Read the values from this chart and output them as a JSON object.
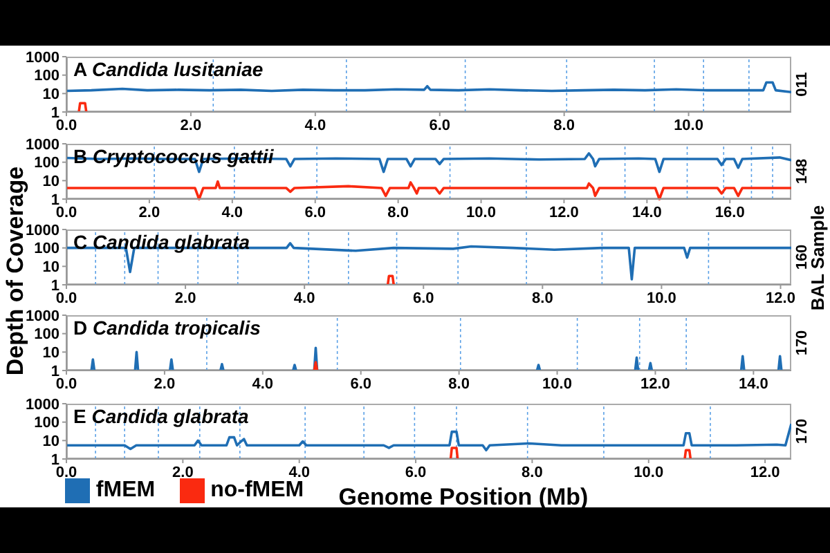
{
  "chart_data": [
    {
      "type": "line",
      "title": "Candida lusitaniae",
      "annotations": [
        "A",
        "011"
      ],
      "xlim": [
        0,
        11.65
      ],
      "xticks": [
        {
          "value": 0,
          "label": "0.0"
        },
        {
          "value": 2,
          "label": "2.0"
        },
        {
          "value": 4,
          "label": "4.0"
        },
        {
          "value": 6,
          "label": "6.0"
        },
        {
          "value": 8,
          "label": "8.0"
        },
        {
          "value": 10,
          "label": "10.0"
        }
      ],
      "ylim": [
        1,
        1000
      ],
      "yticks": [
        1,
        10,
        100,
        1000
      ],
      "log": "y",
      "tick_labels": "xy",
      "ref_lines": [
        {
          "axis": "x",
          "value": 2.36,
          "color": "#5aa0e6",
          "line_style": "dotted"
        },
        {
          "axis": "x",
          "value": 4.5,
          "color": "#5aa0e6",
          "line_style": "dotted"
        },
        {
          "axis": "x",
          "value": 6.41,
          "color": "#5aa0e6",
          "line_style": "dotted"
        },
        {
          "axis": "x",
          "value": 8.04,
          "color": "#5aa0e6",
          "line_style": "dotted"
        },
        {
          "axis": "x",
          "value": 9.45,
          "color": "#5aa0e6",
          "line_style": "dotted"
        },
        {
          "axis": "x",
          "value": 10.24,
          "color": "#5aa0e6",
          "line_style": "dotted"
        },
        {
          "axis": "x",
          "value": 10.97,
          "color": "#5aa0e6",
          "line_style": "dotted"
        }
      ],
      "series": [
        {
          "color": "#1f6eb4",
          "x": [
            0,
            0.4,
            0.9,
            1.3,
            1.8,
            2.3,
            2.8,
            3.3,
            3.8,
            4.3,
            4.8,
            5.3,
            5.75,
            5.8,
            5.85,
            6.3,
            6.8,
            7.3,
            7.8,
            8.3,
            8.8,
            9.3,
            9.8,
            10.3,
            10.8,
            11.2,
            11.25,
            11.35,
            11.4,
            11.65
          ],
          "values": [
            14,
            15,
            18,
            15,
            16,
            15,
            16,
            14,
            16,
            15,
            15,
            17,
            16,
            25,
            16,
            15,
            17,
            15,
            14,
            15,
            16,
            15,
            17,
            15,
            15,
            15,
            40,
            40,
            15,
            12
          ]
        },
        {
          "color": "#fa2a10",
          "x": [
            0.2,
            0.22,
            0.3,
            0.32
          ],
          "values": [
            1,
            3,
            3,
            1
          ]
        }
      ]
    },
    {
      "type": "line",
      "title": "Cryptococcus gattii",
      "annotations": [
        "B",
        "148"
      ],
      "xlim": [
        0,
        17.48
      ],
      "xticks": [
        {
          "value": 0,
          "label": "0.0"
        },
        {
          "value": 2,
          "label": "2.0"
        },
        {
          "value": 4,
          "label": "4.0"
        },
        {
          "value": 6,
          "label": "6.0"
        },
        {
          "value": 8,
          "label": "8.0"
        },
        {
          "value": 10,
          "label": "10.0"
        },
        {
          "value": 12,
          "label": "12.0"
        },
        {
          "value": 14,
          "label": "14.0"
        },
        {
          "value": 16,
          "label": "16.0"
        }
      ],
      "ylim": [
        1,
        1000
      ],
      "yticks": [
        1,
        10,
        100,
        1000
      ],
      "log": "y",
      "ref_lines": [
        {
          "axis": "x",
          "value": 2.12,
          "color": "#5aa0e6",
          "line_style": "dotted"
        },
        {
          "axis": "x",
          "value": 4.05,
          "color": "#5aa0e6",
          "line_style": "dotted"
        },
        {
          "axis": "x",
          "value": 6.04,
          "color": "#5aa0e6",
          "line_style": "dotted"
        },
        {
          "axis": "x",
          "value": 9.25,
          "color": "#5aa0e6",
          "line_style": "dotted"
        },
        {
          "axis": "x",
          "value": 11.09,
          "color": "#5aa0e6",
          "line_style": "dotted"
        },
        {
          "axis": "x",
          "value": 13.47,
          "color": "#5aa0e6",
          "line_style": "dotted"
        },
        {
          "axis": "x",
          "value": 14.97,
          "color": "#5aa0e6",
          "line_style": "dotted"
        },
        {
          "axis": "x",
          "value": 15.85,
          "color": "#5aa0e6",
          "line_style": "dotted"
        },
        {
          "axis": "x",
          "value": 16.52,
          "color": "#5aa0e6",
          "line_style": "dotted"
        },
        {
          "axis": "x",
          "value": 17.03,
          "color": "#5aa0e6",
          "line_style": "dotted"
        }
      ],
      "series": [
        {
          "color": "#1f6eb4",
          "x": [
            0,
            0.8,
            1.6,
            2.4,
            3.1,
            3.2,
            3.3,
            4.2,
            5.3,
            5.4,
            5.5,
            6.5,
            7.55,
            7.65,
            7.75,
            8.2,
            8.3,
            8.4,
            8.9,
            9.0,
            9.1,
            10.2,
            11.4,
            12.5,
            12.6,
            12.7,
            12.75,
            12.85,
            13.8,
            14.2,
            14.3,
            14.4,
            15.7,
            15.8,
            15.9,
            16.1,
            16.2,
            16.3,
            17.2,
            17.48
          ],
          "values": [
            170,
            150,
            160,
            150,
            150,
            30,
            150,
            160,
            150,
            60,
            150,
            160,
            150,
            30,
            150,
            150,
            60,
            150,
            150,
            80,
            150,
            160,
            140,
            150,
            300,
            150,
            60,
            150,
            160,
            150,
            30,
            150,
            150,
            70,
            150,
            150,
            50,
            150,
            180,
            130
          ]
        },
        {
          "color": "#fa2a10",
          "x": [
            0,
            1.5,
            2.5,
            3.1,
            3.2,
            3.3,
            3.6,
            3.65,
            3.7,
            5.3,
            5.4,
            5.5,
            6.8,
            7.6,
            7.7,
            7.8,
            8.25,
            8.3,
            8.38,
            8.45,
            8.5,
            8.9,
            9.0,
            9.1,
            10.7,
            12.55,
            12.6,
            12.7,
            12.75,
            12.85,
            14.2,
            14.3,
            14.4,
            15.7,
            15.8,
            15.9,
            16.1,
            16.2,
            16.3,
            17.48
          ],
          "values": [
            4,
            4,
            4,
            4,
            1,
            4,
            4,
            9,
            4,
            4,
            2.5,
            4,
            5,
            4,
            1.5,
            4,
            4,
            8,
            4,
            2,
            4,
            4,
            2,
            4,
            4,
            4,
            7,
            4,
            1.5,
            4,
            4,
            1,
            4,
            4,
            2,
            4,
            4,
            1.5,
            4,
            4
          ]
        }
      ]
    },
    {
      "type": "line",
      "title": "Candida glabrata",
      "annotations": [
        "C",
        "160"
      ],
      "ylabel": "Depth of Coverage",
      "y2label": "BAL Sample",
      "xlim": [
        0,
        12.18
      ],
      "xticks": [
        {
          "value": 0,
          "label": "0.0"
        },
        {
          "value": 2,
          "label": "2.0"
        },
        {
          "value": 4,
          "label": "4.0"
        },
        {
          "value": 6,
          "label": "6.0"
        },
        {
          "value": 8,
          "label": "8.0"
        },
        {
          "value": 10,
          "label": "10.0"
        },
        {
          "value": 12,
          "label": "12.0"
        }
      ],
      "ylim": [
        1,
        1000
      ],
      "yticks": [
        1,
        10,
        100,
        1000
      ],
      "log": "y",
      "ref_lines": [
        {
          "axis": "x",
          "value": 0.49,
          "color": "#5aa0e6",
          "line_style": "dotted"
        },
        {
          "axis": "x",
          "value": 0.98,
          "color": "#5aa0e6",
          "line_style": "dotted"
        },
        {
          "axis": "x",
          "value": 1.54,
          "color": "#5aa0e6",
          "line_style": "dotted"
        },
        {
          "axis": "x",
          "value": 2.21,
          "color": "#5aa0e6",
          "line_style": "dotted"
        },
        {
          "axis": "x",
          "value": 2.88,
          "color": "#5aa0e6",
          "line_style": "dotted"
        },
        {
          "axis": "x",
          "value": 4.07,
          "color": "#5aa0e6",
          "line_style": "dotted"
        },
        {
          "axis": "x",
          "value": 4.74,
          "color": "#5aa0e6",
          "line_style": "dotted"
        },
        {
          "axis": "x",
          "value": 5.55,
          "color": "#5aa0e6",
          "line_style": "dotted"
        },
        {
          "axis": "x",
          "value": 6.58,
          "color": "#5aa0e6",
          "line_style": "dotted"
        },
        {
          "axis": "x",
          "value": 7.73,
          "color": "#5aa0e6",
          "line_style": "dotted"
        },
        {
          "axis": "x",
          "value": 9.0,
          "color": "#5aa0e6",
          "line_style": "dotted"
        },
        {
          "axis": "x",
          "value": 10.79,
          "color": "#5aa0e6",
          "line_style": "dotted"
        }
      ],
      "series": [
        {
          "color": "#1f6eb4",
          "x": [
            0,
            0.6,
            1.0,
            1.07,
            1.14,
            2.0,
            3.0,
            3.7,
            3.76,
            3.82,
            4.86,
            5.5,
            6.5,
            6.8,
            7.5,
            8.2,
            9.0,
            9.45,
            9.5,
            9.55,
            10.38,
            10.43,
            10.48,
            11.3,
            12.18
          ],
          "values": [
            100,
            100,
            100,
            5,
            100,
            100,
            100,
            100,
            180,
            100,
            70,
            100,
            90,
            120,
            100,
            80,
            100,
            100,
            2,
            100,
            100,
            30,
            100,
            100,
            100
          ]
        },
        {
          "color": "#fa2a10",
          "x": [
            5.4,
            5.42,
            5.48,
            5.5
          ],
          "values": [
            1,
            3,
            3,
            1
          ]
        }
      ]
    },
    {
      "type": "line",
      "title": "Candida tropicalis",
      "annotations": [
        "D",
        "170"
      ],
      "xlim": [
        0,
        14.77
      ],
      "xticks": [
        {
          "value": 0,
          "label": "0.0"
        },
        {
          "value": 2,
          "label": "2.0"
        },
        {
          "value": 4,
          "label": "4.0"
        },
        {
          "value": 6,
          "label": "6.0"
        },
        {
          "value": 8,
          "label": "8.0"
        },
        {
          "value": 10,
          "label": "10.0"
        },
        {
          "value": 12,
          "label": "12.0"
        },
        {
          "value": 14,
          "label": "14.0"
        }
      ],
      "ylim": [
        1,
        1000
      ],
      "yticks": [
        1,
        10,
        100,
        1000
      ],
      "log": "y",
      "ref_lines": [
        {
          "axis": "x",
          "value": 2.86,
          "color": "#5aa0e6",
          "line_style": "dotted"
        },
        {
          "axis": "x",
          "value": 5.52,
          "color": "#5aa0e6",
          "line_style": "dotted"
        },
        {
          "axis": "x",
          "value": 8.03,
          "color": "#5aa0e6",
          "line_style": "dotted"
        },
        {
          "axis": "x",
          "value": 10.41,
          "color": "#5aa0e6",
          "line_style": "dotted"
        },
        {
          "axis": "x",
          "value": 11.68,
          "color": "#5aa0e6",
          "line_style": "dotted"
        },
        {
          "axis": "x",
          "value": 12.63,
          "color": "#5aa0e6",
          "line_style": "dotted"
        }
      ],
      "series": [
        {
          "color": "#1f6eb4",
          "x": [
            0.51,
            0.54,
            0.57,
            0.8,
            1.4,
            1.43,
            1.46,
            1.8,
            2.11,
            2.14,
            2.17,
            2.4,
            3.14,
            3.17,
            3.2,
            3.5,
            4.62,
            4.65,
            4.68,
            4.8,
            5.05,
            5.08,
            5.11,
            5.2,
            9.59,
            9.62,
            9.65,
            9.9,
            11.59,
            11.62,
            11.65,
            11.8,
            11.87,
            11.9,
            11.93,
            12,
            13.75,
            13.78,
            13.81,
            14,
            14.51,
            14.54,
            14.57
          ],
          "values": [
            1,
            4,
            1,
            null,
            1,
            10,
            1,
            null,
            1,
            4,
            1,
            null,
            1,
            2.2,
            1,
            null,
            1,
            2,
            1,
            null,
            1,
            17,
            1,
            null,
            1,
            2,
            1,
            null,
            1,
            5,
            1,
            null,
            1,
            2.5,
            1,
            null,
            1,
            6,
            1,
            null,
            1,
            6,
            1
          ]
        },
        {
          "color": "#fa2a10",
          "x": [
            5.05,
            5.08,
            5.11
          ],
          "values": [
            1,
            2.8,
            1
          ]
        }
      ]
    },
    {
      "type": "line",
      "title": "Candida glabrata",
      "annotations": [
        "E",
        "170"
      ],
      "xlabel": "Genome Position (Mb)",
      "legend": "bottom left",
      "xlim": [
        0,
        12.45
      ],
      "xticks": [
        {
          "value": 0,
          "label": "0.0"
        },
        {
          "value": 2,
          "label": "2.0"
        },
        {
          "value": 4,
          "label": "4.0"
        },
        {
          "value": 6,
          "label": "6.0"
        },
        {
          "value": 8,
          "label": "8.0"
        },
        {
          "value": 10,
          "label": "10.0"
        },
        {
          "value": 12,
          "label": "12.0"
        }
      ],
      "ylim": [
        1,
        1000
      ],
      "yticks": [
        1,
        10,
        100,
        1000
      ],
      "log": "y",
      "ref_lines": [
        {
          "axis": "x",
          "value": 0.5,
          "color": "#5aa0e6",
          "line_style": "dotted"
        },
        {
          "axis": "x",
          "value": 1.0,
          "color": "#5aa0e6",
          "line_style": "dotted"
        },
        {
          "axis": "x",
          "value": 1.58,
          "color": "#5aa0e6",
          "line_style": "dotted"
        },
        {
          "axis": "x",
          "value": 2.29,
          "color": "#5aa0e6",
          "line_style": "dotted"
        },
        {
          "axis": "x",
          "value": 2.98,
          "color": "#5aa0e6",
          "line_style": "dotted"
        },
        {
          "axis": "x",
          "value": 4.1,
          "color": "#5aa0e6",
          "line_style": "dotted"
        },
        {
          "axis": "x",
          "value": 5.11,
          "color": "#5aa0e6",
          "line_style": "dotted"
        },
        {
          "axis": "x",
          "value": 5.98,
          "color": "#5aa0e6",
          "line_style": "dotted"
        },
        {
          "axis": "x",
          "value": 6.7,
          "color": "#5aa0e6",
          "line_style": "dotted"
        },
        {
          "axis": "x",
          "value": 7.92,
          "color": "#5aa0e6",
          "line_style": "dotted"
        },
        {
          "axis": "x",
          "value": 9.23,
          "color": "#5aa0e6",
          "line_style": "dotted"
        },
        {
          "axis": "x",
          "value": 11.06,
          "color": "#5aa0e6",
          "line_style": "dotted"
        }
      ],
      "series": [
        {
          "name": "fMEM",
          "color": "#1f6eb4",
          "x": [
            0,
            0.5,
            1.0,
            1.1,
            1.2,
            1.8,
            2.2,
            2.26,
            2.32,
            2.75,
            2.8,
            2.88,
            2.93,
            3.0,
            3.05,
            3.1,
            3.6,
            4.0,
            4.06,
            4.12,
            5.45,
            5.54,
            5.62,
            6.3,
            6.58,
            6.62,
            6.7,
            6.74,
            7.15,
            7.21,
            7.27,
            7.95,
            8.5,
            9.5,
            10.6,
            10.64,
            10.7,
            10.74,
            11.5,
            12.2,
            12.35,
            12.45
          ],
          "values": [
            5.5,
            5.5,
            5.5,
            3.5,
            5.5,
            5.5,
            5.5,
            10,
            5.5,
            5.5,
            15,
            15,
            5.5,
            9,
            12,
            5.5,
            5.5,
            5.5,
            9,
            5.5,
            5.5,
            4,
            5.5,
            5.5,
            5.5,
            30,
            30,
            5.5,
            5.5,
            3,
            5.5,
            7,
            5.5,
            5.5,
            5.5,
            25,
            25,
            5.5,
            5.5,
            6,
            5.5,
            80
          ]
        },
        {
          "name": "no-fMEM",
          "color": "#fa2a10",
          "x": [
            6.6,
            6.62,
            6.7,
            6.72,
            8,
            10.62,
            10.64,
            10.7,
            10.72
          ],
          "values": [
            1,
            4,
            4,
            1,
            null,
            1,
            3,
            3,
            1
          ]
        }
      ]
    }
  ]
}
